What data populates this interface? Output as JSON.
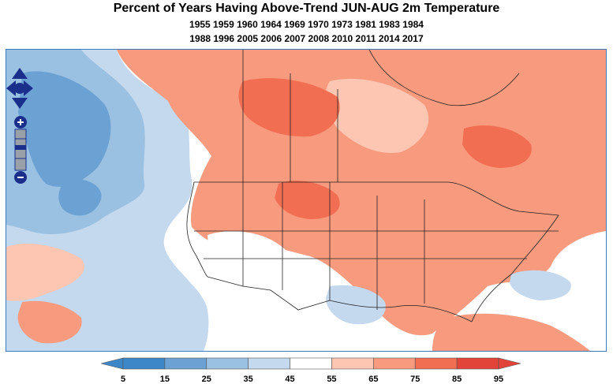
{
  "title": "Percent of Years Having Above-Trend JUN-AUG 2m Temperature",
  "years_line1": "1955 1959 1960 1964 1969 1970 1973 1981 1983 1984",
  "years_line2": "1988 1996 2005 2006 2007 2008 2010 2011 2014 2017",
  "colorbar": {
    "ticks": [
      "5",
      "15",
      "25",
      "35",
      "45",
      "55",
      "65",
      "75",
      "85",
      "95"
    ],
    "colors": [
      "#3d87c8",
      "#6ca2d3",
      "#9bc1e2",
      "#c4d8ee",
      "#ffffff",
      "#fcc6b2",
      "#f89a7e",
      "#f26e53",
      "#e3443a"
    ]
  },
  "colors": {
    "frame_border": "#3b7bbf",
    "control_fill": "#1a2f8c",
    "boundary_lines": "#222222"
  },
  "controls": {
    "pan": "pan-control-icon",
    "zoom_in": "zoom-in-icon",
    "zoom_out": "zoom-out-icon"
  }
}
